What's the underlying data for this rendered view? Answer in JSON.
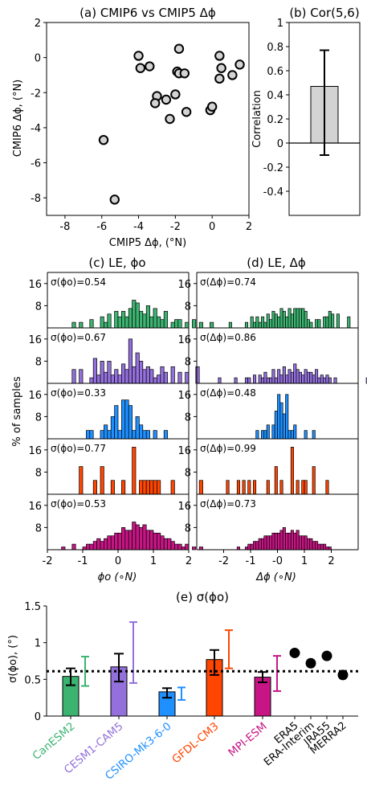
{
  "chart_data": [
    {
      "id": "a",
      "type": "scatter",
      "title": "(a) CMIP6 vs CMIP5 Δϕ",
      "xlabel": "CMIP5 Δϕ, (°N)",
      "ylabel": "CMIP6 Δϕ, (°N)",
      "xlim": [
        -9,
        2
      ],
      "ylim": [
        -9,
        2
      ],
      "xticks": [
        "-8",
        "-6",
        "-4",
        "-2",
        "0",
        "2"
      ],
      "yticks": [
        "2",
        "0",
        "-2",
        "-4",
        "-6",
        "-8"
      ],
      "points": [
        {
          "x": -4.0,
          "y": 0.1
        },
        {
          "x": -3.9,
          "y": -0.6
        },
        {
          "x": -3.4,
          "y": -0.5
        },
        {
          "x": -1.8,
          "y": 0.5
        },
        {
          "x": -1.9,
          "y": -0.8
        },
        {
          "x": -1.8,
          "y": -0.9
        },
        {
          "x": -1.5,
          "y": -0.9
        },
        {
          "x": -3.0,
          "y": -2.2
        },
        {
          "x": -3.1,
          "y": -2.6
        },
        {
          "x": -2.5,
          "y": -2.4
        },
        {
          "x": -2.0,
          "y": -2.1
        },
        {
          "x": -1.4,
          "y": -3.1
        },
        {
          "x": -2.3,
          "y": -3.5
        },
        {
          "x": 0.4,
          "y": 0.1
        },
        {
          "x": 0.5,
          "y": -0.6
        },
        {
          "x": 1.1,
          "y": -1.0
        },
        {
          "x": 1.5,
          "y": -0.4
        },
        {
          "x": 0.4,
          "y": -1.2
        },
        {
          "x": -0.1,
          "y": -3.0
        },
        {
          "x": 0.0,
          "y": -2.8
        },
        {
          "x": -5.9,
          "y": -4.7
        },
        {
          "x": -5.3,
          "y": -8.1
        }
      ]
    },
    {
      "id": "b",
      "type": "bar",
      "title": "(b) Cor(5,6)",
      "ylabel": "Correlation",
      "ylim": [
        -0.6,
        1.0
      ],
      "yticks": [
        "1",
        "0.8",
        "0.6",
        "0.4",
        "0.2",
        "0",
        "-0.2",
        "-0.4"
      ],
      "value": 0.47,
      "err_low": -0.1,
      "err_high": 0.77,
      "color": "#d3d3d3"
    },
    {
      "id": "c",
      "type": "bar",
      "title": "(c) LE, ϕo",
      "xlabel": "ϕo (∘N)",
      "xlim": [
        -2,
        2
      ],
      "xticks": [
        "-2",
        "-1",
        "0",
        "1",
        "2"
      ],
      "yticks": [
        "16",
        "8"
      ],
      "ylabel": "% of samples",
      "panels": [
        {
          "model": "CanESM2",
          "color": "#3cb371",
          "sigma_label": "σ(ϕo)=0.54",
          "bin_width": 0.1,
          "bin_start": -1.3,
          "counts": [
            2,
            0,
            2,
            0,
            0,
            3,
            0,
            0,
            4,
            2,
            5,
            0,
            6,
            4,
            6,
            4,
            7,
            10,
            9,
            6,
            5,
            8,
            4,
            7,
            4,
            3,
            6,
            0,
            2,
            3,
            3,
            0,
            2,
            0,
            3,
            0,
            2,
            0,
            0,
            2,
            0,
            0
          ]
        },
        {
          "model": "CESM1-CAM5",
          "color": "#9370db",
          "sigma_label": "σ(ϕo)=0.67",
          "bin_width": 0.1,
          "bin_start": -1.3,
          "counts": [
            5,
            0,
            5,
            0,
            0,
            2,
            9,
            3,
            8,
            4,
            8,
            3,
            5,
            3,
            7,
            5,
            16,
            6,
            11,
            8,
            5,
            6,
            5,
            2,
            3,
            6,
            4,
            0,
            6,
            0,
            4,
            0,
            4,
            0,
            0,
            6,
            0,
            0,
            0,
            0
          ]
        },
        {
          "model": "CSIRO-Mk3-6-0",
          "color": "#1e90ff",
          "sigma_label": "σ(ϕo)=0.33",
          "bin_width": 0.1,
          "bin_start": -0.9,
          "counts": [
            3,
            3,
            0,
            0,
            3,
            5,
            3,
            8,
            12,
            3,
            14,
            14,
            12,
            3,
            8,
            5,
            3,
            3,
            0,
            3,
            0,
            0,
            3
          ]
        },
        {
          "model": "GFDL-CM3",
          "color": "#ff4500",
          "sigma_label": "σ(ϕo)=0.77",
          "bin_width": 0.1,
          "bin_start": -1.1,
          "counts": [
            10,
            0,
            0,
            0,
            5,
            0,
            10,
            0,
            0,
            5,
            0,
            0,
            5,
            0,
            0,
            17,
            0,
            5,
            5,
            5,
            5,
            5,
            5,
            0,
            0,
            0,
            5,
            0,
            0,
            0,
            0,
            0,
            0,
            0,
            5
          ]
        },
        {
          "model": "MPI-ESM",
          "color": "#c71585",
          "sigma_label": "σ(ϕo)=0.53",
          "bin_width": 0.1,
          "bin_start": -1.6,
          "counts": [
            1,
            0,
            0,
            2,
            0,
            0,
            1,
            2,
            2,
            3,
            4,
            3,
            4,
            5,
            5,
            6,
            6,
            8,
            7,
            7,
            10,
            9,
            8,
            9,
            7,
            7,
            6,
            6,
            5,
            4,
            4,
            3,
            2,
            2,
            1,
            2,
            0,
            1,
            0,
            1
          ]
        }
      ]
    },
    {
      "id": "d",
      "type": "bar",
      "title": "(d) LE, Δϕ",
      "xlabel": "Δϕ (∘N)",
      "xlim": [
        -3,
        3
      ],
      "xticks": [
        "-2",
        "-1",
        "-0",
        "1",
        "2"
      ],
      "yticks": [
        "16",
        "8"
      ],
      "panels": [
        {
          "model": "CanESM2",
          "sigma_label": "σ(Δϕ)=0.74",
          "bin_width": 0.1,
          "bin_start": -1.8,
          "counts": [
            2,
            0,
            0,
            0,
            0,
            0,
            2,
            0,
            4,
            2,
            4,
            2,
            4,
            2,
            5,
            3,
            6,
            5,
            4,
            7,
            6,
            4,
            7,
            5,
            7,
            7,
            7,
            7,
            6,
            3,
            2,
            0,
            3,
            3,
            0,
            4,
            4,
            6,
            5,
            0,
            5,
            0,
            0,
            0,
            4
          ]
        },
        {
          "model": "CESM1-CAM5",
          "sigma_label": "σ(Δϕ)=0.86",
          "bin_width": 0.1,
          "bin_start": -2.2,
          "counts": [
            2,
            0,
            0,
            0,
            0,
            0,
            2,
            0,
            0,
            0,
            2,
            2,
            0,
            3,
            0,
            3,
            2,
            4,
            2,
            2,
            5,
            2,
            5,
            3,
            6,
            3,
            5,
            4,
            7,
            5,
            4,
            3,
            5,
            4,
            4,
            3,
            5,
            2,
            3,
            2,
            3,
            2,
            0,
            2,
            0,
            0,
            0,
            0,
            0,
            0,
            0,
            0,
            0,
            0,
            0,
            2
          ]
        },
        {
          "model": "CSIRO-Mk3-6-0",
          "sigma_label": "σ(Δϕ)=0.48",
          "bin_width": 0.1,
          "bin_start": -0.8,
          "counts": [
            3,
            0,
            3,
            3,
            5,
            0,
            5,
            10,
            16,
            13,
            9,
            16,
            3,
            3,
            5,
            0,
            0,
            0,
            3,
            0,
            0,
            3
          ]
        },
        {
          "model": "GFDL-CM3",
          "sigma_label": "σ(Δϕ)=0.99",
          "bin_width": 0.1,
          "bin_start": -1.9,
          "counts": [
            5,
            0,
            0,
            0,
            5,
            0,
            5,
            0,
            5,
            0,
            5,
            0,
            0,
            0,
            0,
            5,
            0,
            0,
            10,
            0,
            5,
            0,
            0,
            0,
            17,
            0,
            5,
            0,
            5,
            5,
            0,
            0,
            10,
            0,
            0,
            0,
            0,
            5
          ]
        },
        {
          "model": "MPI-ESM",
          "sigma_label": "σ(Δϕ)=0.73",
          "bin_width": 0.1,
          "bin_start": -1.5,
          "counts": [
            1,
            0,
            0,
            1,
            2,
            2,
            3,
            3,
            4,
            4,
            5,
            5,
            5,
            6,
            6,
            6,
            7,
            8,
            6,
            6,
            7,
            6,
            7,
            5,
            5,
            5,
            4,
            4,
            3,
            3,
            2,
            2,
            2,
            1,
            1
          ]
        }
      ]
    },
    {
      "id": "e",
      "type": "bar",
      "title": "(e) σ(ϕo)",
      "ylabel": "σ(ϕo), (°)",
      "ylim": [
        0,
        1.5
      ],
      "yticks": [
        "1.5",
        "1",
        "0.5",
        "0"
      ],
      "reference_line": 0.61,
      "models": [
        {
          "name": "CanESM2",
          "color": "#3cb371",
          "value": 0.54,
          "err": [
            0.42,
            0.65
          ],
          "spread": [
            0.41,
            0.81
          ]
        },
        {
          "name": "CESM1-CAM5",
          "color": "#9370db",
          "value": 0.67,
          "err": [
            0.47,
            0.85
          ],
          "spread": [
            0.45,
            1.28
          ]
        },
        {
          "name": "CSIRO-Mk3-6-0",
          "color": "#1e90ff",
          "value": 0.33,
          "err": [
            0.25,
            0.38
          ],
          "spread": [
            0.22,
            0.39
          ]
        },
        {
          "name": "GFDL-CM3",
          "color": "#ff4500",
          "value": 0.77,
          "err": [
            0.56,
            0.9
          ],
          "spread": [
            0.65,
            1.17
          ]
        },
        {
          "name": "MPI-ESM",
          "color": "#c71585",
          "value": 0.53,
          "err": [
            0.46,
            0.6
          ],
          "spread": [
            0.34,
            0.82
          ]
        }
      ],
      "reanalyses": [
        {
          "name": "ERA5",
          "value": 0.86
        },
        {
          "name": "ERA-Interim",
          "value": 0.72
        },
        {
          "name": "JRA55",
          "value": 0.82
        },
        {
          "name": "MERRA2",
          "value": 0.56
        }
      ]
    }
  ]
}
